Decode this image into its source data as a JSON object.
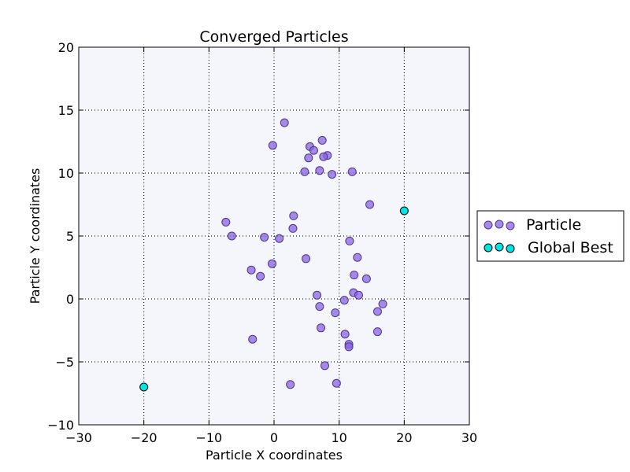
{
  "chart_data": {
    "type": "scatter",
    "title": "Converged Particles",
    "xlabel": "Particle X coordinates",
    "ylabel": "Particle Y coordinates",
    "xlim": [
      -30,
      30
    ],
    "ylim": [
      -10,
      20
    ],
    "xticks": [
      -30,
      -20,
      -10,
      0,
      10,
      20,
      30
    ],
    "xtick_labels": [
      "−30",
      "−20",
      "−10",
      "0",
      "10",
      "20",
      "30"
    ],
    "yticks": [
      -10,
      -5,
      0,
      5,
      10,
      15,
      20
    ],
    "ytick_labels": [
      "−10",
      "−5",
      "0",
      "5",
      "10",
      "15",
      "20"
    ],
    "grid": true,
    "legend_position": "outside-right",
    "background": "#f5f6fb",
    "series": [
      {
        "name": "Particle",
        "color": "#8a63e0",
        "edge_color": "#4b3691",
        "points": [
          [
            1.6,
            14.0
          ],
          [
            -0.2,
            12.2
          ],
          [
            7.4,
            12.6
          ],
          [
            5.5,
            12.1
          ],
          [
            6.1,
            11.8
          ],
          [
            8.2,
            11.4
          ],
          [
            7.6,
            11.3
          ],
          [
            5.3,
            11.2
          ],
          [
            4.7,
            10.1
          ],
          [
            7.0,
            10.2
          ],
          [
            8.9,
            9.9
          ],
          [
            12.0,
            10.1
          ],
          [
            14.7,
            7.5
          ],
          [
            -7.4,
            6.1
          ],
          [
            3.0,
            6.6
          ],
          [
            2.9,
            5.6
          ],
          [
            -6.5,
            5.0
          ],
          [
            -1.5,
            4.9
          ],
          [
            0.8,
            4.8
          ],
          [
            11.6,
            4.6
          ],
          [
            12.8,
            3.3
          ],
          [
            4.9,
            3.2
          ],
          [
            -0.3,
            2.8
          ],
          [
            -3.5,
            2.3
          ],
          [
            -2.1,
            1.8
          ],
          [
            12.3,
            1.9
          ],
          [
            14.2,
            1.6
          ],
          [
            6.6,
            0.3
          ],
          [
            12.2,
            0.5
          ],
          [
            13.0,
            0.3
          ],
          [
            10.8,
            -0.1
          ],
          [
            7.0,
            -0.6
          ],
          [
            16.7,
            -0.4
          ],
          [
            15.9,
            -1.0
          ],
          [
            9.4,
            -1.1
          ],
          [
            7.2,
            -2.3
          ],
          [
            10.9,
            -2.8
          ],
          [
            15.9,
            -2.6
          ],
          [
            -3.3,
            -3.2
          ],
          [
            11.5,
            -3.6
          ],
          [
            11.5,
            -3.8
          ],
          [
            7.8,
            -5.3
          ],
          [
            2.5,
            -6.8
          ],
          [
            9.6,
            -6.7
          ]
        ]
      },
      {
        "name": "Global Best",
        "color": "#00e5e5",
        "edge_color": "#000000",
        "points": [
          [
            20.0,
            7.0
          ],
          [
            -20.0,
            -7.0
          ]
        ]
      }
    ]
  }
}
